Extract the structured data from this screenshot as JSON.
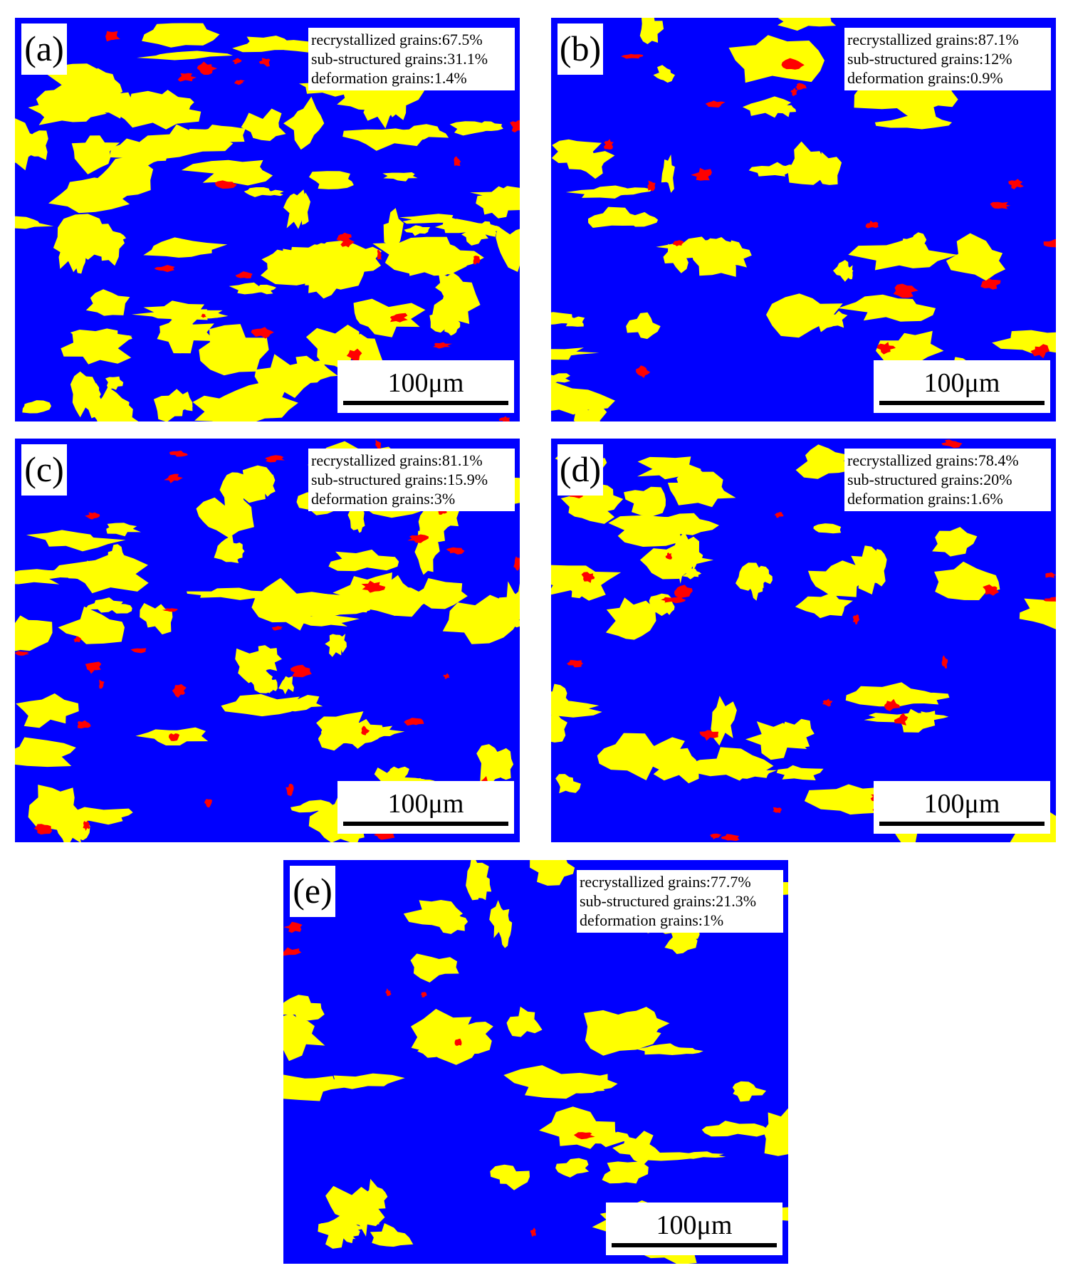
{
  "panels": [
    {
      "label": "(a)",
      "stats": [
        "recrystallized grains:67.5%",
        "sub-structured grains:31.1%",
        "deformation grains:1.4%"
      ],
      "scale_bar": "100μm"
    },
    {
      "label": "(b)",
      "stats": [
        "recrystallized grains:87.1%",
        "sub-structured grains:12%",
        "deformation grains:0.9%"
      ],
      "scale_bar": "100μm"
    },
    {
      "label": "(c)",
      "stats": [
        "recrystallized grains:81.1%",
        "sub-structured grains:15.9%",
        "deformation grains:3%"
      ],
      "scale_bar": "100μm"
    },
    {
      "label": "(d)",
      "stats": [
        "recrystallized grains:78.4%",
        "sub-structured grains:20%",
        "deformation grains:1.6%"
      ],
      "scale_bar": "100μm"
    },
    {
      "label": "(e)",
      "stats": [
        "recrystallized grains:77.7%",
        "sub-structured grains:21.3%",
        "deformation grains:1%"
      ],
      "scale_bar": "100μm"
    }
  ]
}
